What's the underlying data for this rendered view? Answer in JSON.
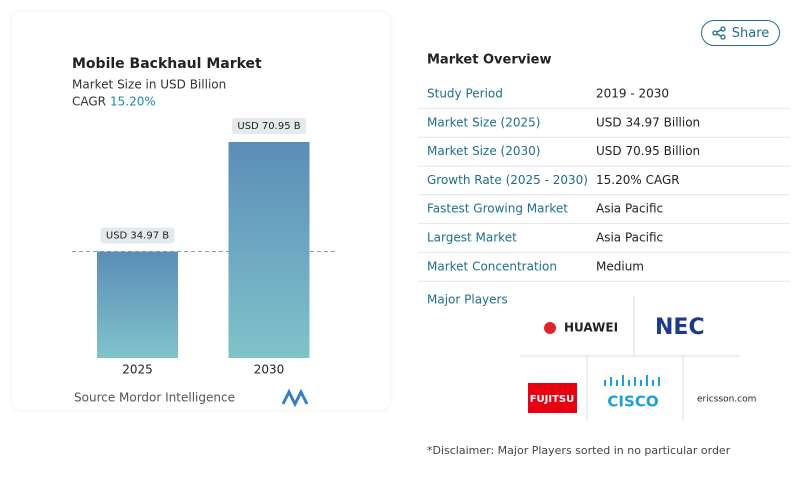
{
  "chart_data": {
    "type": "bar",
    "title": "Mobile Backhaul Market",
    "subtitle": "Market Size in USD Billion",
    "cagr_label": "CAGR",
    "cagr_value": "15.20%",
    "categories": [
      "2025",
      "2030"
    ],
    "values": [
      34.97,
      70.95
    ],
    "value_labels": [
      "USD 34.97 B",
      "USD 70.95 B"
    ],
    "source_label": "Source :",
    "source": "Mordor Intelligence"
  },
  "share": "Share",
  "overview": {
    "title": "Market Overview",
    "rows": [
      [
        "Study Period",
        "2019 - 2030"
      ],
      [
        "Market Size (2025)",
        "USD 34.97 Billion"
      ],
      [
        "Market Size (2030)",
        "USD 70.95 Billion"
      ],
      [
        "Growth Rate (2025 - 2030)",
        "15.20% CAGR"
      ],
      [
        "Fastest Growing Market",
        "Asia Pacific"
      ],
      [
        "Largest Market",
        "Asia Pacific"
      ],
      [
        "Market Concentration",
        "Medium"
      ]
    ]
  },
  "players": {
    "title": "Major Players",
    "names": [
      "HUAWEI",
      "NEC",
      "FUJITSU",
      "CISCO",
      "ericsson.com"
    ]
  },
  "disclaimer": "*Disclaimer: Major Players sorted in no particular order"
}
